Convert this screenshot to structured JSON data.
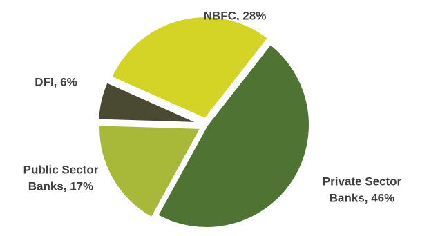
{
  "chart_data": {
    "type": "pie",
    "slices": [
      {
        "label_lines": [
          "Private Sector",
          "Banks, 46%"
        ],
        "category": "Private Sector Banks",
        "value": 46,
        "color": "#4e7333"
      },
      {
        "label_lines": [
          "Public Sector",
          "Banks, 17%"
        ],
        "category": "Public Sector Banks",
        "value": 17,
        "color": "#a8b838",
        "exploded": true
      },
      {
        "label_lines": [
          "DFI, 6%"
        ],
        "category": "DFI",
        "value": 6,
        "color": "#4a4a33",
        "exploded": true
      },
      {
        "label_lines": [
          "NBFC, 28%"
        ],
        "category": "NBFC",
        "value": 28,
        "color": "#d4d426",
        "exploded": true
      }
    ]
  }
}
